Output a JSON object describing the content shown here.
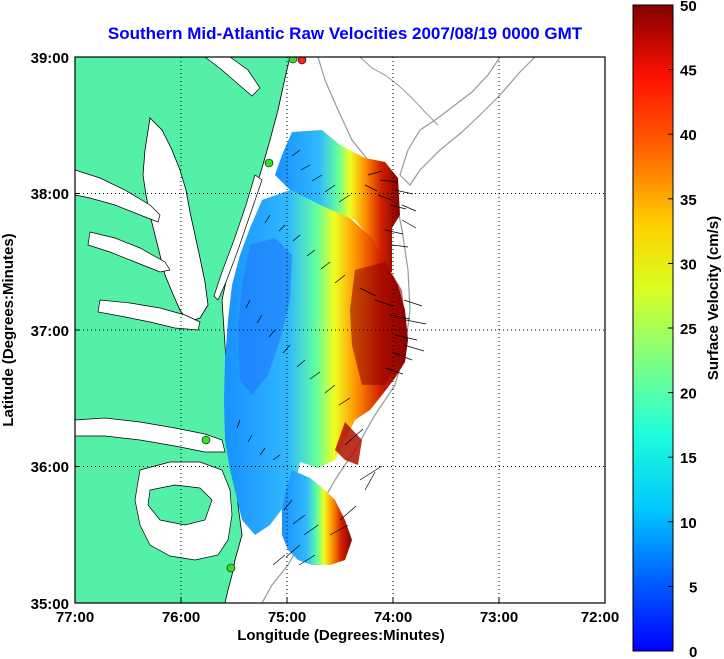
{
  "title": "Southern Mid-Atlantic Raw Velocities 2007/08/19 0000 GMT",
  "xlabel": "Longitude (Degrees:Minutes)",
  "ylabel": "Latitude (Degrees:Minutes)",
  "colorbar_label": "Surface Velocity (cm/s)",
  "x_ticks": [
    "77:00",
    "76:00",
    "75:00",
    "74:00",
    "73:00",
    "72:00"
  ],
  "y_ticks": [
    "39:00",
    "38:00",
    "37:00",
    "36:00",
    "35:00"
  ],
  "colorbar_ticks": [
    "50",
    "45",
    "40",
    "35",
    "30",
    "25",
    "20",
    "15",
    "10",
    "5",
    "0"
  ],
  "colors": {
    "land": "#55f0a8",
    "water": "#ffffff",
    "title": "#0000ff",
    "station_green": "#33dd33",
    "station_red": "#ff2020",
    "bathymetry": "#999999"
  },
  "map": {
    "lon_range": [
      -77,
      -72
    ],
    "lat_range": [
      35,
      39
    ],
    "grid": "dotted",
    "colormap": "jet",
    "velocity_range_cm_s": [
      0,
      50
    ]
  }
}
